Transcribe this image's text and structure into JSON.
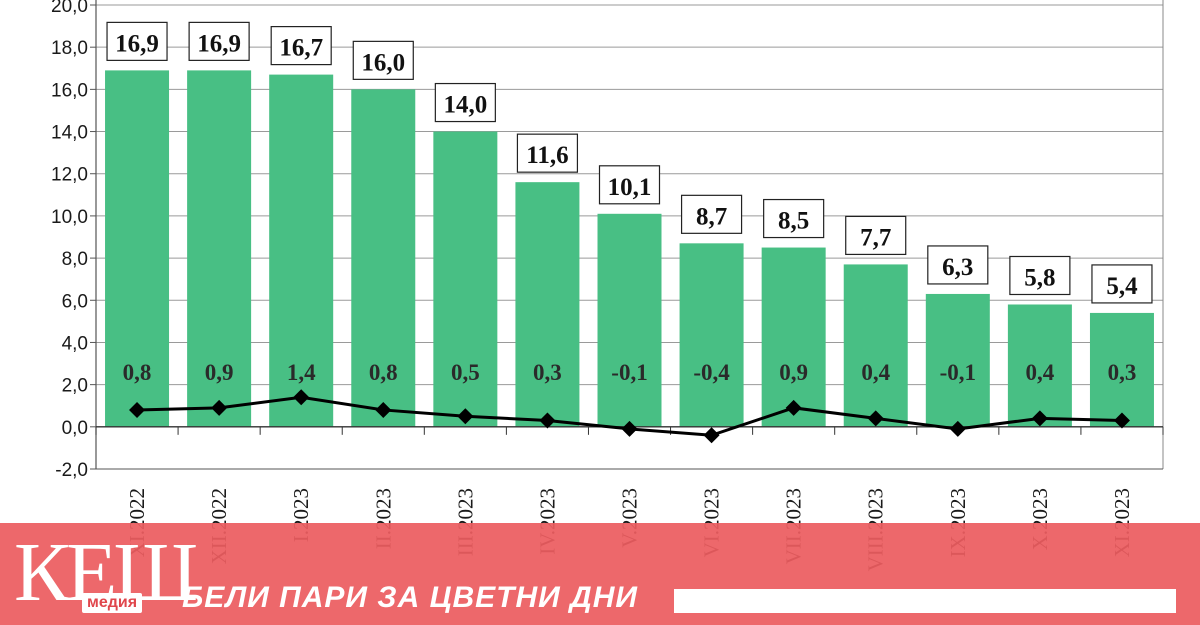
{
  "chart_data": {
    "type": "bar",
    "categories": [
      "XI.2022",
      "XII.2022",
      "I.2023",
      "II.2023",
      "III.2023",
      "IV.2023",
      "V.2023",
      "VI.2023",
      "VII.2023",
      "VIII.2023",
      "IX.2023",
      "X.2023",
      "XI.2023"
    ],
    "series": [
      {
        "type": "bar",
        "color": "#48bf84",
        "values": [
          16.9,
          16.9,
          16.7,
          16.0,
          14.0,
          11.6,
          10.1,
          8.7,
          8.5,
          7.7,
          6.3,
          5.8,
          5.4
        ],
        "labels": [
          "16,9",
          "16,9",
          "16,7",
          "16,0",
          "14,0",
          "11,6",
          "10,1",
          "8,7",
          "8,5",
          "7,7",
          "6,3",
          "5,8",
          "5,4"
        ]
      },
      {
        "type": "line",
        "color": "#000000",
        "values": [
          0.8,
          0.9,
          1.4,
          0.8,
          0.5,
          0.3,
          -0.1,
          -0.4,
          0.9,
          0.4,
          -0.1,
          0.4,
          0.3
        ],
        "labels": [
          "0,8",
          "0,9",
          "1,4",
          "0,8",
          "0,5",
          "0,3",
          "-0,1",
          "-0,4",
          "0,9",
          "0,4",
          "-0,1",
          "0,4",
          "0,3"
        ]
      }
    ],
    "yticks": [
      "-2,0",
      "0,0",
      "2,0",
      "4,0",
      "6,0",
      "8,0",
      "10,0",
      "12,0",
      "14,0",
      "16,0",
      "18,0",
      "20,0"
    ],
    "ylim": [
      -2,
      20
    ],
    "grid": true
  },
  "banner": {
    "logo": "КЕШ",
    "logo_sub": "медия",
    "tagline": "БЕЛИ ПАРИ ЗА ЦВЕТНИ ДНИ"
  }
}
